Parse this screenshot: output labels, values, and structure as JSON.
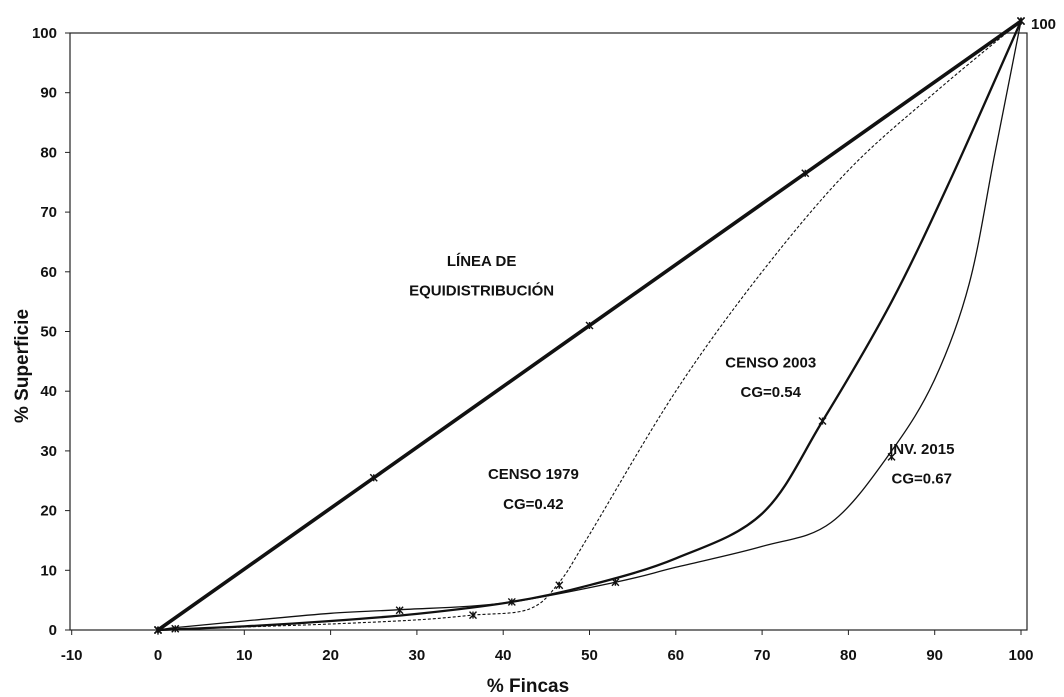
{
  "chart_data": {
    "type": "line",
    "title": "",
    "xlabel": "% Fincas",
    "ylabel": "% Superficie",
    "xlim": [
      -10,
      100
    ],
    "ylim": [
      0,
      100
    ],
    "xticks": [
      -10,
      0,
      10,
      20,
      30,
      40,
      50,
      60,
      70,
      80,
      90,
      100
    ],
    "yticks": [
      0,
      10,
      20,
      30,
      40,
      50,
      60,
      70,
      80,
      90,
      100
    ],
    "grid": false,
    "legend": "none",
    "corner_label": "100",
    "series": [
      {
        "label_lines": [
          "LÍNEA DE",
          "EQUIDISTRIBUCIÓN"
        ],
        "style": "thick",
        "color": "#111111",
        "points": [
          [
            0,
            0
          ],
          [
            25,
            25.5
          ],
          [
            50,
            51
          ],
          [
            75,
            76.5
          ],
          [
            100,
            102
          ]
        ],
        "markers": [
          [
            0,
            0
          ],
          [
            25,
            25.5
          ],
          [
            50,
            51
          ],
          [
            75,
            76.5
          ],
          [
            100,
            102
          ]
        ]
      },
      {
        "label_lines": [
          "CENSO 2003",
          "CG=0.54"
        ],
        "style": "medium",
        "color": "#111111",
        "points": [
          [
            0,
            0
          ],
          [
            10,
            0.6
          ],
          [
            20,
            1.5
          ],
          [
            30,
            2.7
          ],
          [
            41,
            4.7
          ],
          [
            50,
            7.5
          ],
          [
            60,
            12
          ],
          [
            70,
            19.5
          ],
          [
            77,
            35
          ],
          [
            85,
            55
          ],
          [
            92,
            76
          ],
          [
            100,
            102
          ]
        ],
        "markers": [
          [
            0,
            0
          ],
          [
            41,
            4.7
          ],
          [
            77,
            35
          ],
          [
            100,
            102
          ]
        ]
      },
      {
        "label_lines": [
          "CENSO 1979",
          "CG=0.42"
        ],
        "style": "dashed",
        "color": "#111111",
        "points": [
          [
            0,
            0
          ],
          [
            10,
            0.5
          ],
          [
            20,
            1.0
          ],
          [
            30,
            1.7
          ],
          [
            36.5,
            2.5
          ],
          [
            43,
            3.5
          ],
          [
            46.5,
            8
          ],
          [
            50,
            16
          ],
          [
            60,
            40
          ],
          [
            70,
            60
          ],
          [
            80,
            77
          ],
          [
            90,
            90
          ],
          [
            100,
            102
          ]
        ],
        "markers": [
          [
            0,
            0
          ],
          [
            36.5,
            2.5
          ],
          [
            46.5,
            7.5
          ],
          [
            100,
            102
          ]
        ]
      },
      {
        "label_lines": [
          "INV. 2015",
          "CG=0.67"
        ],
        "style": "thin",
        "color": "#111111",
        "points": [
          [
            0,
            0
          ],
          [
            2,
            0.4
          ],
          [
            10,
            1.5
          ],
          [
            20,
            2.8
          ],
          [
            28,
            3.4
          ],
          [
            40,
            4.5
          ],
          [
            53,
            8
          ],
          [
            60,
            10.5
          ],
          [
            70,
            14
          ],
          [
            78,
            18
          ],
          [
            85,
            30
          ],
          [
            90,
            42
          ],
          [
            94,
            58
          ],
          [
            97,
            80
          ],
          [
            100,
            102
          ]
        ],
        "markers": [
          [
            0,
            0
          ],
          [
            2,
            0.2
          ],
          [
            28,
            3.3
          ],
          [
            53,
            8
          ],
          [
            85,
            29
          ],
          [
            100,
            102
          ]
        ]
      }
    ],
    "annotations": [
      {
        "lines": [
          "LÍNEA DE",
          "EQUIDISTRIBUCIÓN"
        ],
        "x": 37.5,
        "y": 61,
        "line_step": 5
      },
      {
        "lines": [
          "CENSO 2003",
          "CG=0.54"
        ],
        "x": 71,
        "y": 44,
        "line_step": 5
      },
      {
        "lines": [
          "CENSO 1979",
          "CG=0.42"
        ],
        "x": 43.5,
        "y": 25.3,
        "line_step": 5
      },
      {
        "lines": [
          "INV. 2015",
          "CG=0.67"
        ],
        "x": 88.5,
        "y": 29.5,
        "line_step": 5
      }
    ]
  }
}
